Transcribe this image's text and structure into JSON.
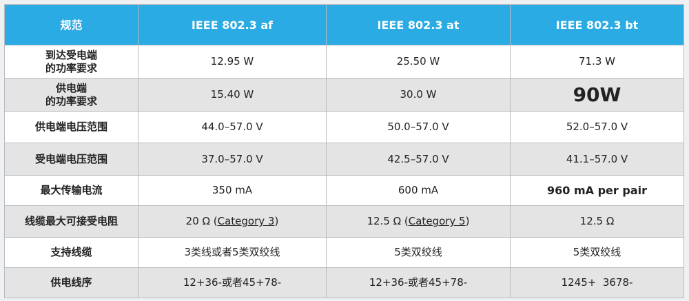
{
  "table": {
    "header": [
      "规范",
      "IEEE 802.3 af",
      "IEEE 802.3 at",
      "IEEE 802.3 bt"
    ],
    "rows": [
      [
        "到达受电端\n的功率要求",
        "12.95 W",
        "25.50 W",
        "71.3 W"
      ],
      [
        "供电端\n的功率要求",
        "15.40 W",
        "30.0 W",
        "90W"
      ],
      [
        "供电端电压范围",
        "44.0–57.0 V",
        "50.0–57.0 V",
        "52.0–57.0 V"
      ],
      [
        "受电端电压范围",
        "37.0–57.0 V",
        "42.5–57.0 V",
        "41.1–57.0 V"
      ],
      [
        "最大传输电流",
        "350 mA",
        "600 mA",
        "960 mA per pair"
      ],
      [
        "线缆最大可接受电阻",
        [
          "20 Ω (",
          "Category 3",
          ")"
        ],
        [
          "12.5 Ω (",
          "Category 5",
          ")"
        ],
        "12.5 Ω"
      ],
      [
        "支持线缆",
        "3类线或者5类双绞线",
        "5类双绞线",
        "5类双绞线"
      ],
      [
        "供电线序",
        "12+36-或者45+78-",
        "12+36-或者45+78-",
        "1245+  3678-"
      ]
    ]
  }
}
